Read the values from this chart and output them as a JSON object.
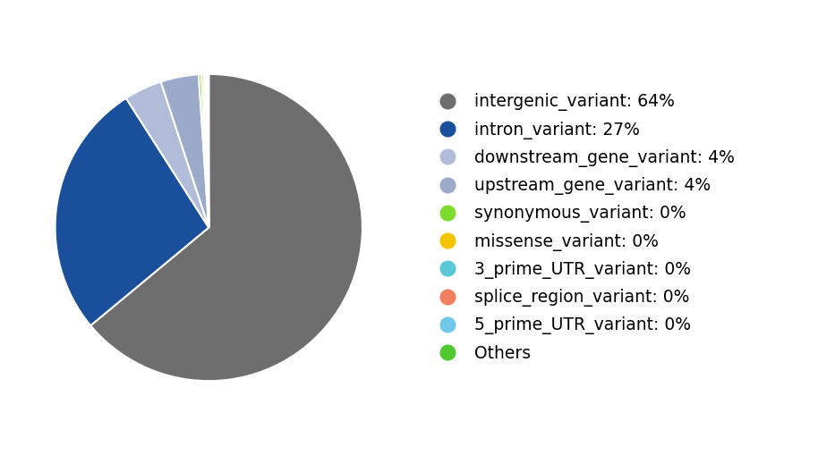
{
  "labels": [
    "intergenic_variant: 64%",
    "intron_variant: 27%",
    "downstream_gene_variant: 4%",
    "upstream_gene_variant: 4%",
    "synonymous_variant: 0%",
    "missense_variant: 0%",
    "3_prime_UTR_variant: 0%",
    "splice_region_variant: 0%",
    "5_prime_UTR_variant: 0%",
    "Others"
  ],
  "values": [
    64,
    27,
    4,
    4,
    0.3,
    0.25,
    0.2,
    0.15,
    0.1,
    0.05
  ],
  "colors": [
    "#6e6e6e",
    "#1a4f9c",
    "#b0bcd8",
    "#9aaac8",
    "#7ddb2d",
    "#f5c400",
    "#5bc8d8",
    "#f08060",
    "#70c8e8",
    "#50c830"
  ],
  "background_color": "#ffffff",
  "legend_fontsize": 13.5,
  "startangle": 90,
  "counterclock": false
}
